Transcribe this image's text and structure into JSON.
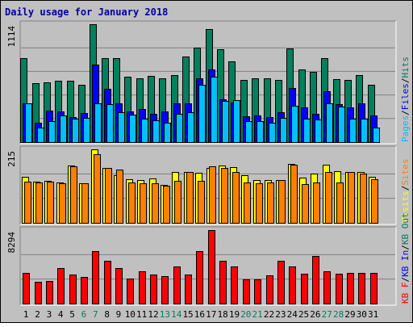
{
  "chart_data": {
    "type": "bar",
    "title": "Daily usage for January 2018",
    "categories": [
      "1",
      "2",
      "3",
      "4",
      "5",
      "6",
      "7",
      "8",
      "9",
      "10",
      "11",
      "12",
      "13",
      "14",
      "15",
      "16",
      "17",
      "18",
      "19",
      "20",
      "21",
      "22",
      "23",
      "24",
      "25",
      "26",
      "27",
      "28",
      "29",
      "30",
      "31"
    ],
    "weekend_days": [
      "6",
      "7",
      "13",
      "14",
      "20",
      "21",
      "27",
      "28"
    ],
    "panels": [
      {
        "id": "requests",
        "scale_label": "1114",
        "ymax": 1114,
        "legend": [
          "Pages",
          "/",
          "Files",
          "/",
          "Hits"
        ],
        "legend_colors": [
          "#00C0FF",
          "#000000",
          "#0000FF",
          "#000000",
          "#00805C"
        ],
        "series": [
          {
            "name": "Hits",
            "color": "#00805C",
            "values": [
              790,
              555,
              565,
              580,
              580,
              545,
              1114,
              795,
              795,
              620,
              605,
              625,
              600,
              635,
              810,
              890,
              1070,
              880,
              765,
              590,
              605,
              605,
              590,
              885,
              685,
              665,
              795,
              595,
              590,
              630,
              545
            ]
          },
          {
            "name": "Files",
            "color": "#0000FF",
            "values": [
              370,
              180,
              295,
              290,
              240,
              275,
              735,
              505,
              365,
              290,
              315,
              270,
              290,
              365,
              370,
              605,
              690,
              405,
              375,
              245,
              250,
              235,
              280,
              515,
              325,
              270,
              480,
              360,
              330,
              370,
              255
            ]
          },
          {
            "name": "Pages",
            "color": "#00C0FF",
            "values": [
              370,
              140,
              200,
              250,
              225,
              230,
              365,
              360,
              280,
              260,
              225,
              205,
              185,
              270,
              280,
              545,
              620,
              390,
              395,
              200,
              200,
              180,
              230,
              345,
              225,
              215,
              370,
              335,
              225,
              220,
              140
            ]
          }
        ]
      },
      {
        "id": "visits",
        "scale_label": "215",
        "ymax": 215,
        "legend": [
          "Visits",
          "/",
          "Sites"
        ],
        "legend_colors": [
          "#FFFF00",
          "#000000",
          "#FF8000"
        ],
        "series": [
          {
            "name": "Visits",
            "color": "#FFFF00",
            "values": [
              135,
              120,
              122,
              118,
              168,
              116,
              215,
              160,
              140,
              128,
              125,
              130,
              110,
              150,
              150,
              147,
              160,
              168,
              163,
              140,
              125,
              125,
              125,
              172,
              132,
              145,
              170,
              152,
              150,
              148,
              135
            ]
          },
          {
            "name": "Sites",
            "color": "#FF8000",
            "values": [
              120,
              118,
              120,
              115,
              165,
              115,
              200,
              160,
              155,
              118,
              115,
              115,
              108,
              122,
              150,
              122,
              165,
              160,
              150,
              117,
              115,
              117,
              125,
              170,
              113,
              118,
              150,
              118,
              150,
              145,
              128
            ]
          }
        ]
      },
      {
        "id": "kbytes",
        "scale_label": "8294",
        "ymax": 8294,
        "legend": [
          "KB F",
          "/",
          "KB In",
          "/",
          "KB Out"
        ],
        "legend_colors": [
          "#FF0000",
          "#000000",
          "#0000FF",
          "#000000",
          "#00805C"
        ],
        "series": [
          {
            "name": "KB F",
            "color": "#FF0000",
            "values": [
              3450,
              2500,
              2520,
              4000,
              3300,
              3050,
              5900,
              4810,
              4000,
              2830,
              3650,
              3320,
              3100,
              4220,
              3320,
              5920,
              8294,
              4810,
              4190,
              2760,
              2750,
              3170,
              4800,
              4190,
              3360,
              5380,
              3610,
              3360,
              3500,
              3440,
              3460
            ]
          }
        ]
      }
    ]
  }
}
